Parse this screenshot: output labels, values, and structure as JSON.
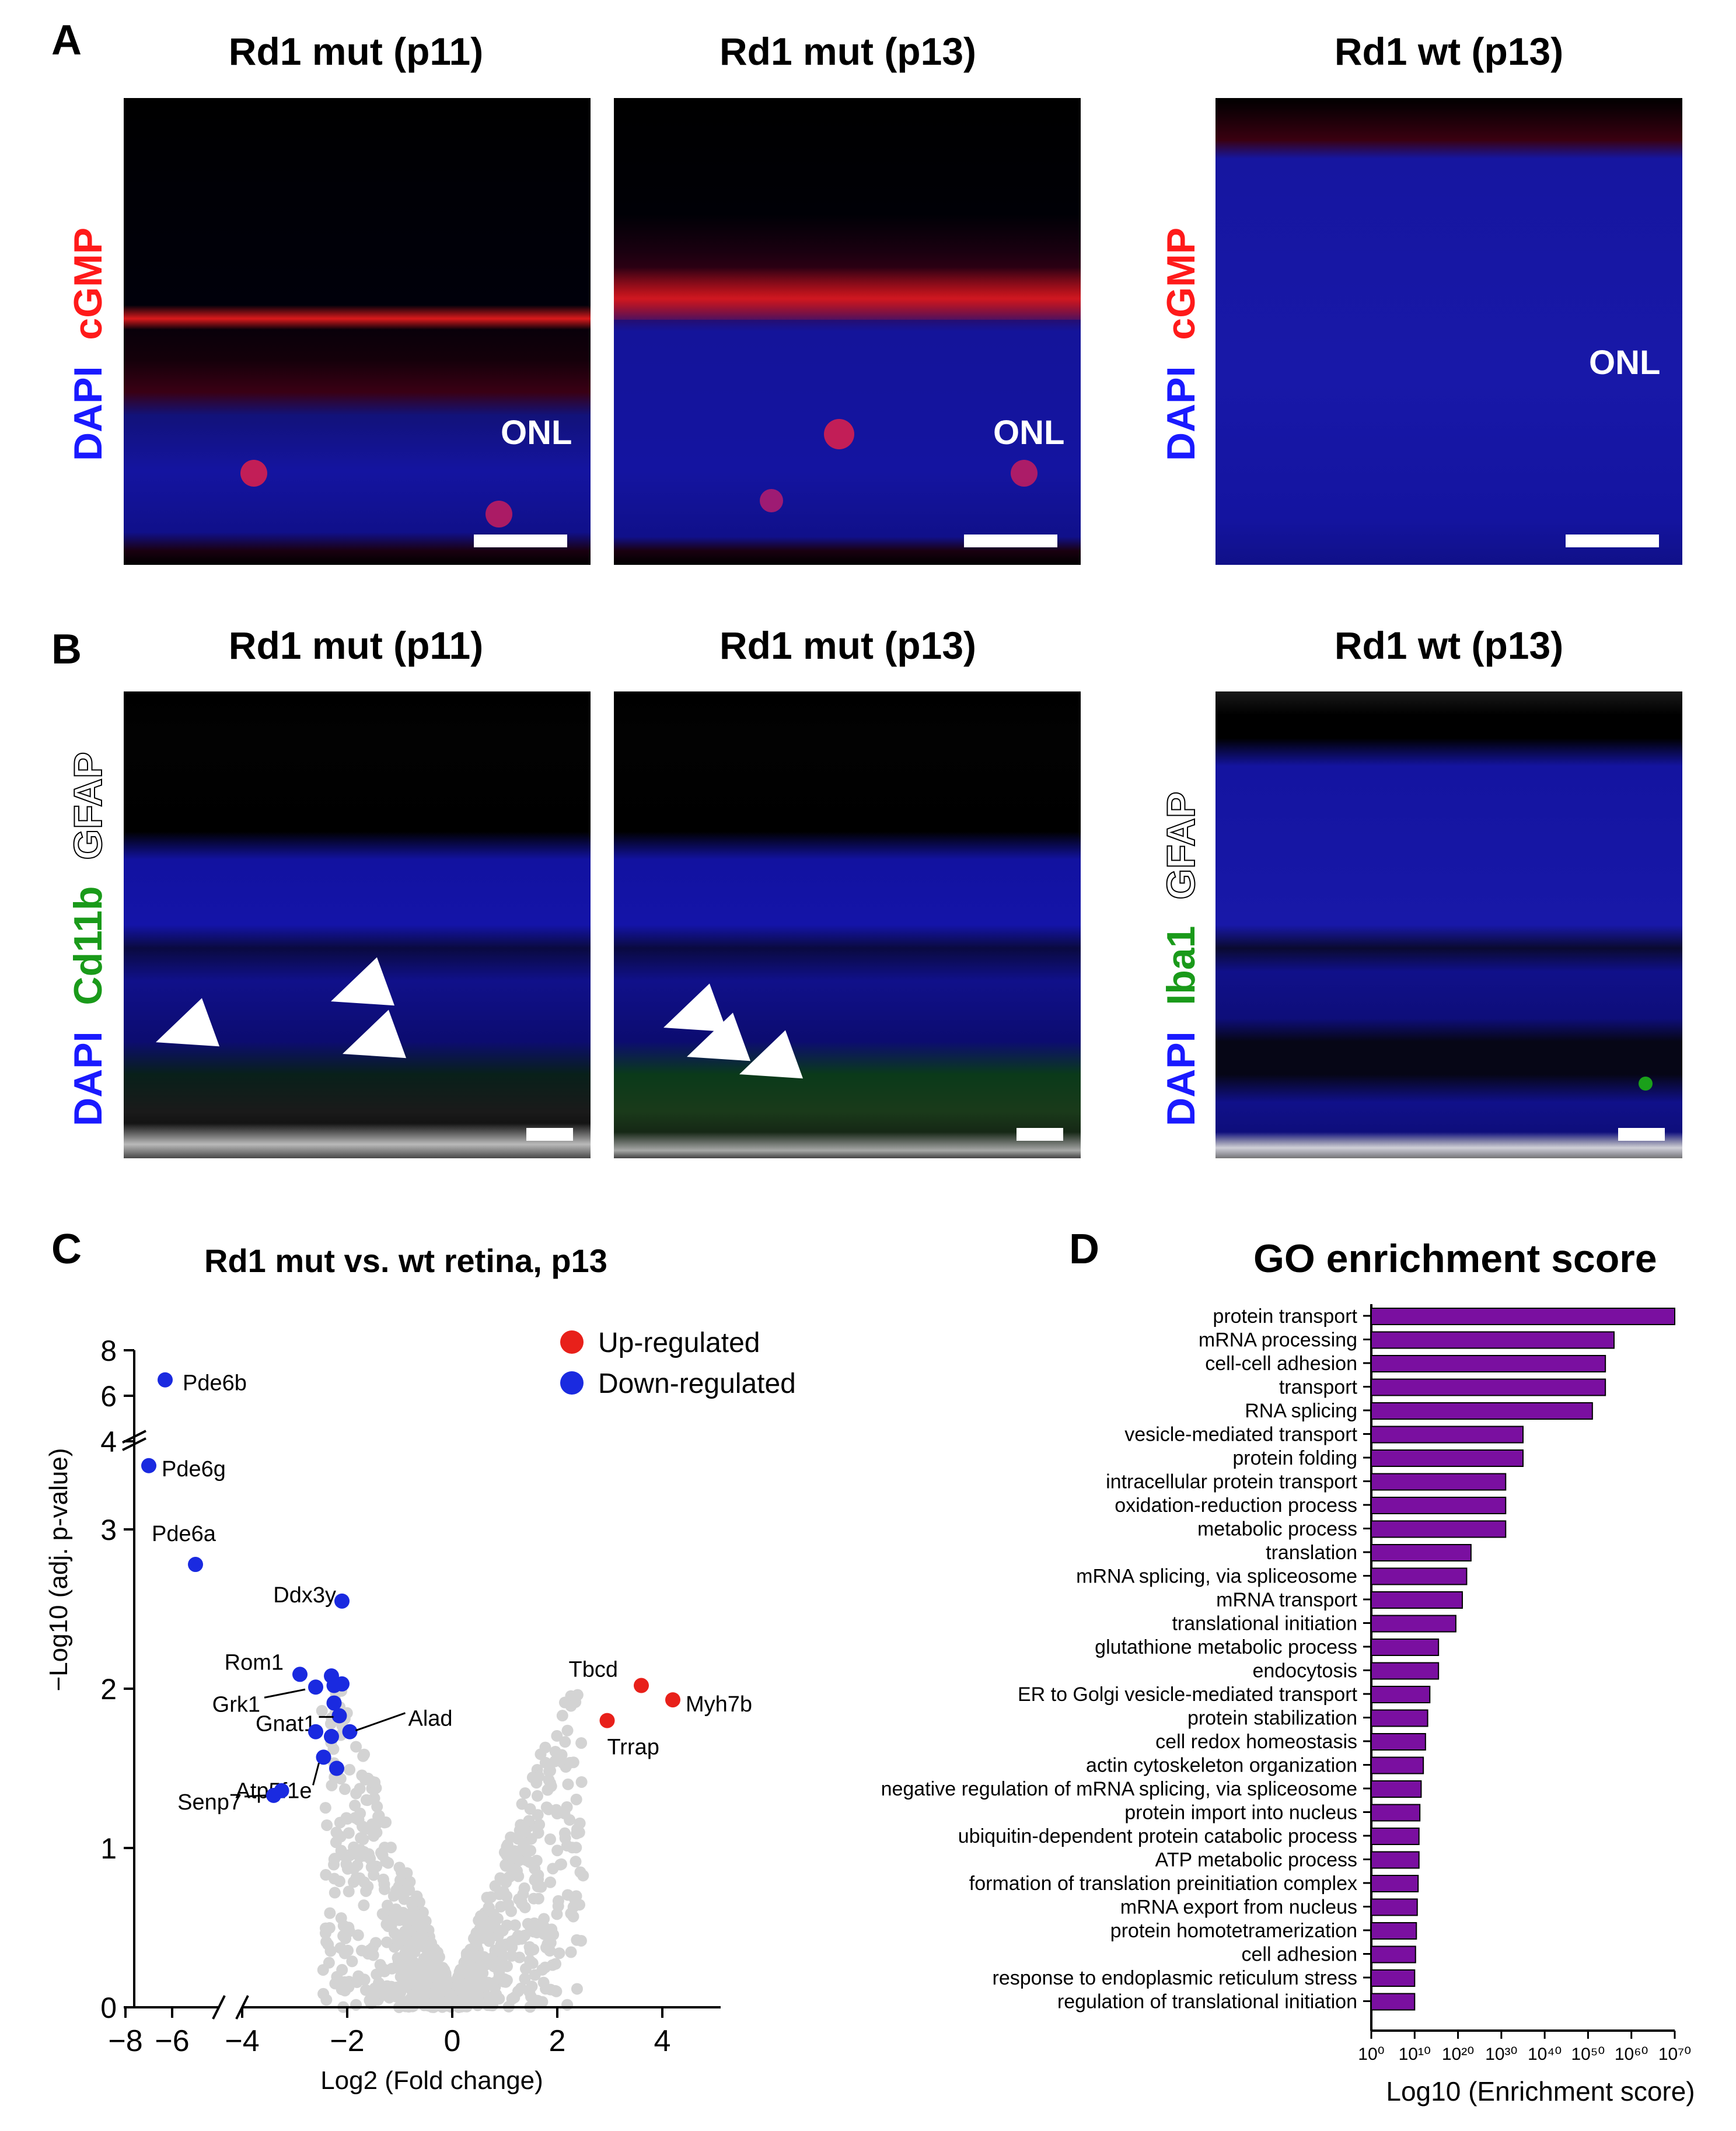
{
  "panel_labels": {
    "a": "A",
    "b": "B",
    "c": "C",
    "d": "D"
  },
  "panel_a": {
    "titles": [
      "Rd1 mut (p11)",
      "Rd1 mut (p13)",
      "Rd1 wt (p13)"
    ],
    "stain_left": {
      "dapi": "DAPI",
      "cgmp": "cGMP"
    },
    "stain_right": {
      "dapi": "DAPI",
      "cgmp": "cGMP"
    },
    "onl_label": "ONL",
    "colors": {
      "dapi": "#1a1aff",
      "cgmp": "#ff1a1a"
    }
  },
  "panel_b": {
    "titles": [
      "Rd1 mut (p11)",
      "Rd1 mut (p13)",
      "Rd1 wt (p13)"
    ],
    "stain_left": {
      "dapi": "DAPI",
      "marker": "Cd11b",
      "gfap": "GFAP"
    },
    "stain_right": {
      "dapi": "DAPI",
      "marker": "Iba1",
      "gfap": "GFAP"
    },
    "colors": {
      "dapi": "#1a1aff",
      "marker": "#1a9a1a",
      "gfap": "#ffffff"
    }
  },
  "chart_data": [
    {
      "type": "scatter",
      "title": "Rd1 mut vs. wt retina, p13",
      "xlabel": "Log2 (Fold change)",
      "ylabel": "−Log10 (adj. p-value)",
      "xticks": [
        "−8",
        "−6",
        "−4",
        "−2",
        "0",
        "2",
        "4"
      ],
      "yticks_lower": [
        "0",
        "1",
        "2",
        "3"
      ],
      "yticks_upper": [
        "4",
        "6",
        "8"
      ],
      "ylim_lower": [
        0,
        3.6
      ],
      "ylim_upper": [
        4,
        8
      ],
      "legend": [
        {
          "label": "Up-regulated",
          "color": "#e8201a"
        },
        {
          "label": "Down-regulated",
          "color": "#1a2ae0"
        }
      ],
      "down_regulated": [
        {
          "gene": "Pde6b",
          "x": -6.3,
          "y": 6.7
        },
        {
          "gene": "Pde6g",
          "x": -7.0,
          "y": 3.4
        },
        {
          "gene": "Pde6a",
          "x": -5.0,
          "y": 2.78
        },
        {
          "gene": "Ddx3y",
          "x": -2.1,
          "y": 2.55
        },
        {
          "gene": "Rom1",
          "x": -2.9,
          "y": 2.09
        },
        {
          "gene": "Grk1",
          "x": -2.6,
          "y": 2.01
        },
        {
          "gene": "",
          "x": -2.3,
          "y": 2.08
        },
        {
          "gene": "",
          "x": -2.1,
          "y": 2.03
        },
        {
          "gene": "",
          "x": -2.25,
          "y": 2.02
        },
        {
          "gene": "",
          "x": -2.25,
          "y": 1.91
        },
        {
          "gene": "Gnat1",
          "x": -2.15,
          "y": 1.83
        },
        {
          "gene": "Alad",
          "x": -1.95,
          "y": 1.73
        },
        {
          "gene": "",
          "x": -2.6,
          "y": 1.73
        },
        {
          "gene": "",
          "x": -2.3,
          "y": 1.7
        },
        {
          "gene": "Atp5f1e",
          "x": -2.45,
          "y": 1.57
        },
        {
          "gene": "",
          "x": -2.2,
          "y": 1.5
        },
        {
          "gene": "Senp7",
          "x": -3.4,
          "y": 1.33
        },
        {
          "gene": "",
          "x": -3.25,
          "y": 1.36
        }
      ],
      "up_regulated": [
        {
          "gene": "Tbcd",
          "x": 3.6,
          "y": 2.02
        },
        {
          "gene": "Myh7b",
          "x": 4.2,
          "y": 1.93
        },
        {
          "gene": "Trrap",
          "x": 2.95,
          "y": 1.8
        }
      ]
    },
    {
      "type": "bar",
      "orientation": "horizontal",
      "title": "GO enrichment score",
      "xlabel": "Log10 (Enrichment score)",
      "xticks": [
        "10⁰",
        "10¹⁰",
        "10²⁰",
        "10³⁰",
        "10⁴⁰",
        "10⁵⁰",
        "10⁶⁰",
        "10⁷⁰"
      ],
      "xlim": [
        0,
        70
      ],
      "bar_color": "#7a0fa0",
      "categories": [
        "protein transport",
        "mRNA processing",
        "cell-cell adhesion",
        "transport",
        "RNA splicing",
        "vesicle-mediated transport",
        "protein folding",
        "intracellular protein transport",
        "oxidation-reduction process",
        "metabolic process",
        "translation",
        "mRNA splicing, via spliceosome",
        "mRNA transport",
        "translational initiation",
        "glutathione metabolic process",
        "endocytosis",
        "ER to Golgi vesicle-mediated transport",
        "protein stabilization",
        "cell redox homeostasis",
        "actin cytoskeleton organization",
        "negative regulation of mRNA splicing, via spliceosome",
        "protein import into nucleus",
        "ubiquitin-dependent protein catabolic process",
        "ATP metabolic process",
        "formation of translation preinitiation complex",
        "mRNA export from nucleus",
        "protein homotetramerization",
        "cell adhesion",
        "response to endoplasmic reticulum stress",
        "regulation of translational initiation"
      ],
      "values": [
        70,
        56,
        54,
        54,
        51,
        35,
        35,
        31,
        31,
        31,
        23,
        22,
        21,
        19.5,
        15.5,
        15.5,
        13.5,
        13,
        12.5,
        12,
        11.5,
        11.2,
        11,
        11,
        10.8,
        10.6,
        10.4,
        10.2,
        10,
        10
      ]
    }
  ]
}
